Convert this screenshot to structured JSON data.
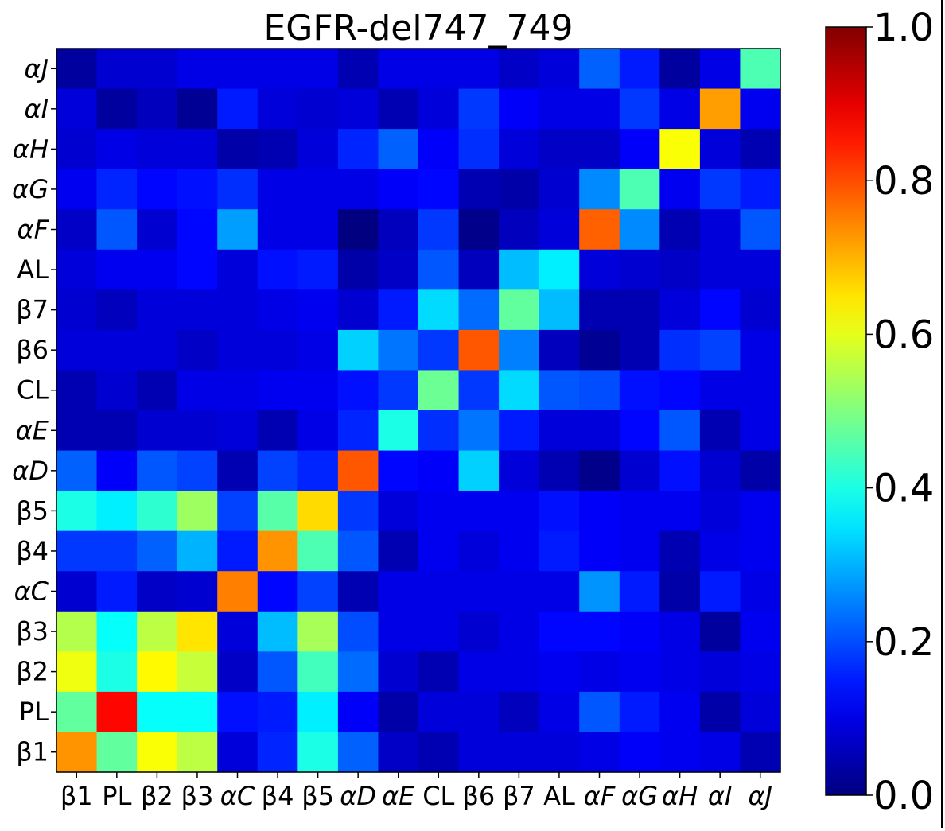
{
  "chart_data": {
    "type": "heatmap",
    "title": "EGFR-del747_749",
    "xlabel": "",
    "ylabel": "",
    "x_labels": [
      "β1",
      "PL",
      "β2",
      "β3",
      "αC",
      "β4",
      "β5",
      "αD",
      "αE",
      "CL",
      "β6",
      "β7",
      "AL",
      "αF",
      "αG",
      "αH",
      "αI",
      "αJ"
    ],
    "y_labels_bottom_to_top": [
      "β1",
      "PL",
      "β2",
      "β3",
      "αC",
      "β4",
      "β5",
      "αD",
      "αE",
      "CL",
      "β6",
      "β7",
      "AL",
      "αF",
      "αG",
      "αH",
      "αI",
      "αJ"
    ],
    "italic_labels": [
      "αC",
      "αD",
      "αE",
      "αF",
      "αG",
      "αH",
      "αI",
      "αJ"
    ],
    "colormap": "jet",
    "colorbar": {
      "range": [
        0.0,
        1.0
      ],
      "ticks": [
        0.0,
        0.2,
        0.4,
        0.6,
        0.8,
        1.0
      ],
      "tick_labels": [
        "0.0",
        "0.2",
        "0.4",
        "0.6",
        "0.8",
        "1.0"
      ]
    },
    "values_top_to_bottom": [
      [
        0.03,
        0.08,
        0.08,
        0.1,
        0.1,
        0.1,
        0.1,
        0.05,
        0.1,
        0.1,
        0.1,
        0.07,
        0.09,
        0.22,
        0.15,
        0.03,
        0.1,
        0.45
      ],
      [
        0.09,
        0.03,
        0.06,
        0.02,
        0.15,
        0.09,
        0.08,
        0.09,
        0.05,
        0.09,
        0.18,
        0.12,
        0.1,
        0.1,
        0.18,
        0.1,
        0.72,
        0.11
      ],
      [
        0.08,
        0.1,
        0.09,
        0.09,
        0.04,
        0.05,
        0.09,
        0.16,
        0.22,
        0.12,
        0.17,
        0.09,
        0.07,
        0.07,
        0.12,
        0.62,
        0.09,
        0.05
      ],
      [
        0.11,
        0.16,
        0.13,
        0.14,
        0.17,
        0.1,
        0.1,
        0.1,
        0.12,
        0.13,
        0.05,
        0.04,
        0.08,
        0.26,
        0.45,
        0.11,
        0.18,
        0.15
      ],
      [
        0.07,
        0.21,
        0.08,
        0.13,
        0.28,
        0.1,
        0.1,
        0.0,
        0.06,
        0.18,
        0.01,
        0.06,
        0.09,
        0.78,
        0.26,
        0.05,
        0.09,
        0.21
      ],
      [
        0.09,
        0.11,
        0.11,
        0.13,
        0.09,
        0.14,
        0.15,
        0.04,
        0.07,
        0.21,
        0.06,
        0.31,
        0.36,
        0.09,
        0.08,
        0.07,
        0.09,
        0.09
      ],
      [
        0.08,
        0.06,
        0.09,
        0.09,
        0.09,
        0.1,
        0.11,
        0.08,
        0.15,
        0.34,
        0.23,
        0.47,
        0.31,
        0.05,
        0.05,
        0.09,
        0.13,
        0.08
      ],
      [
        0.09,
        0.09,
        0.09,
        0.07,
        0.09,
        0.09,
        0.1,
        0.33,
        0.24,
        0.18,
        0.79,
        0.25,
        0.06,
        0.02,
        0.05,
        0.17,
        0.19,
        0.1
      ],
      [
        0.05,
        0.08,
        0.05,
        0.1,
        0.1,
        0.11,
        0.11,
        0.14,
        0.18,
        0.48,
        0.18,
        0.34,
        0.21,
        0.2,
        0.14,
        0.13,
        0.1,
        0.1
      ],
      [
        0.05,
        0.05,
        0.08,
        0.08,
        0.09,
        0.05,
        0.1,
        0.16,
        0.4,
        0.17,
        0.24,
        0.15,
        0.09,
        0.09,
        0.13,
        0.21,
        0.05,
        0.1
      ],
      [
        0.22,
        0.12,
        0.21,
        0.19,
        0.05,
        0.19,
        0.16,
        0.79,
        0.13,
        0.12,
        0.33,
        0.09,
        0.05,
        0.01,
        0.08,
        0.14,
        0.08,
        0.04
      ],
      [
        0.4,
        0.36,
        0.42,
        0.53,
        0.19,
        0.46,
        0.66,
        0.18,
        0.09,
        0.11,
        0.11,
        0.11,
        0.14,
        0.12,
        0.11,
        0.11,
        0.09,
        0.11
      ],
      [
        0.18,
        0.18,
        0.22,
        0.3,
        0.15,
        0.73,
        0.45,
        0.21,
        0.05,
        0.11,
        0.09,
        0.11,
        0.15,
        0.12,
        0.11,
        0.05,
        0.1,
        0.11
      ],
      [
        0.08,
        0.15,
        0.07,
        0.08,
        0.75,
        0.13,
        0.19,
        0.05,
        0.1,
        0.1,
        0.1,
        0.1,
        0.1,
        0.27,
        0.15,
        0.04,
        0.15,
        0.1
      ],
      [
        0.55,
        0.38,
        0.56,
        0.65,
        0.09,
        0.31,
        0.54,
        0.2,
        0.1,
        0.1,
        0.08,
        0.1,
        0.13,
        0.13,
        0.12,
        0.1,
        0.03,
        0.11
      ],
      [
        0.61,
        0.4,
        0.63,
        0.57,
        0.07,
        0.21,
        0.44,
        0.23,
        0.08,
        0.05,
        0.1,
        0.1,
        0.11,
        0.1,
        0.11,
        0.1,
        0.09,
        0.1
      ],
      [
        0.47,
        0.87,
        0.38,
        0.38,
        0.14,
        0.15,
        0.36,
        0.12,
        0.04,
        0.09,
        0.09,
        0.06,
        0.1,
        0.21,
        0.15,
        0.11,
        0.04,
        0.09
      ],
      [
        0.73,
        0.47,
        0.62,
        0.56,
        0.09,
        0.16,
        0.4,
        0.22,
        0.07,
        0.05,
        0.09,
        0.09,
        0.09,
        0.1,
        0.12,
        0.11,
        0.1,
        0.05
      ]
    ]
  }
}
